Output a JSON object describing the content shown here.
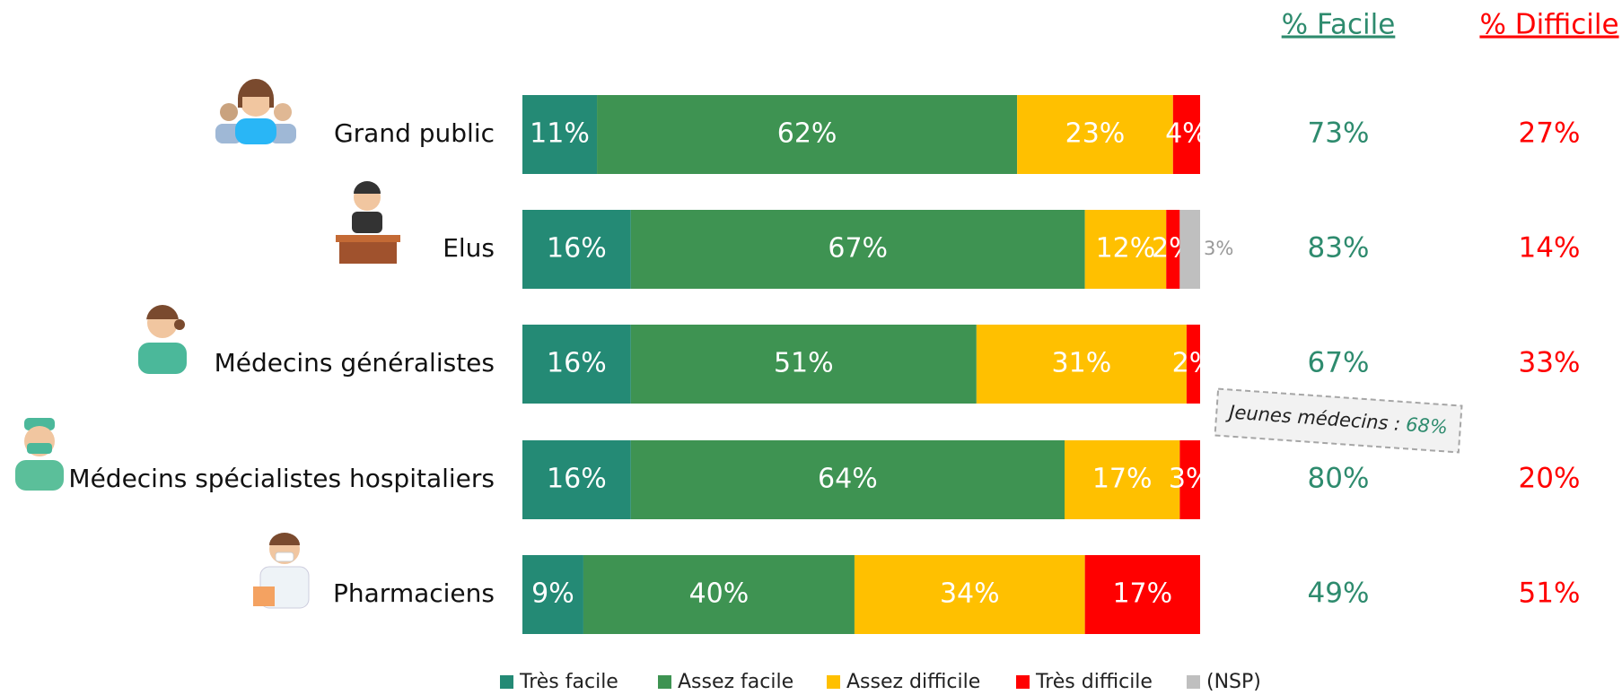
{
  "chart_data": {
    "type": "stacked-bar-horizontal",
    "categories": [
      "Grand public",
      "Elus",
      "Médecins généralistes",
      "Médecins spécialistes hospitaliers",
      "Pharmaciens"
    ],
    "xlim": [
      0,
      100
    ],
    "series": [
      {
        "name": "Très facile",
        "color": "#248a75",
        "values": [
          11,
          16,
          16,
          16,
          9
        ],
        "value_labels": [
          "11%",
          "16%",
          "16%",
          "16%",
          "9%"
        ]
      },
      {
        "name": "Assez facile",
        "color": "#3e9352",
        "values": [
          62,
          67,
          51,
          64,
          40
        ],
        "value_labels": [
          "62%",
          "67%",
          "51%",
          "64%",
          "40%"
        ]
      },
      {
        "name": "Assez difficile",
        "color": "#ffc000",
        "values": [
          23,
          12,
          31,
          17,
          34
        ],
        "value_labels": [
          "23%",
          "12%",
          "31%",
          "17%",
          "34%"
        ]
      },
      {
        "name": "Très difficile",
        "color": "#ff0000",
        "values": [
          4,
          2,
          2,
          3,
          17
        ],
        "value_labels": [
          "4%",
          "2%",
          "2%",
          "3%",
          "17%"
        ]
      },
      {
        "name": "(NSP)",
        "color": "#bfbfbf",
        "values": [
          null,
          3,
          null,
          null,
          null
        ],
        "value_labels": [
          null,
          "3%",
          null,
          null,
          null
        ]
      }
    ],
    "facile": {
      "title": "% Facile",
      "color": "#2e8b6e",
      "values": [
        73,
        83,
        67,
        80,
        49
      ],
      "value_labels": [
        "73%",
        "83%",
        "67%",
        "80%",
        "49%"
      ]
    },
    "difficile": {
      "title": "% Difficile",
      "color": "#ff0000",
      "values": [
        27,
        14,
        33,
        20,
        51
      ],
      "value_labels": [
        "27%",
        "14%",
        "33%",
        "20%",
        "51%"
      ]
    },
    "annotation": {
      "text": "Jeunes médecins :",
      "value_label": "68%"
    }
  }
}
